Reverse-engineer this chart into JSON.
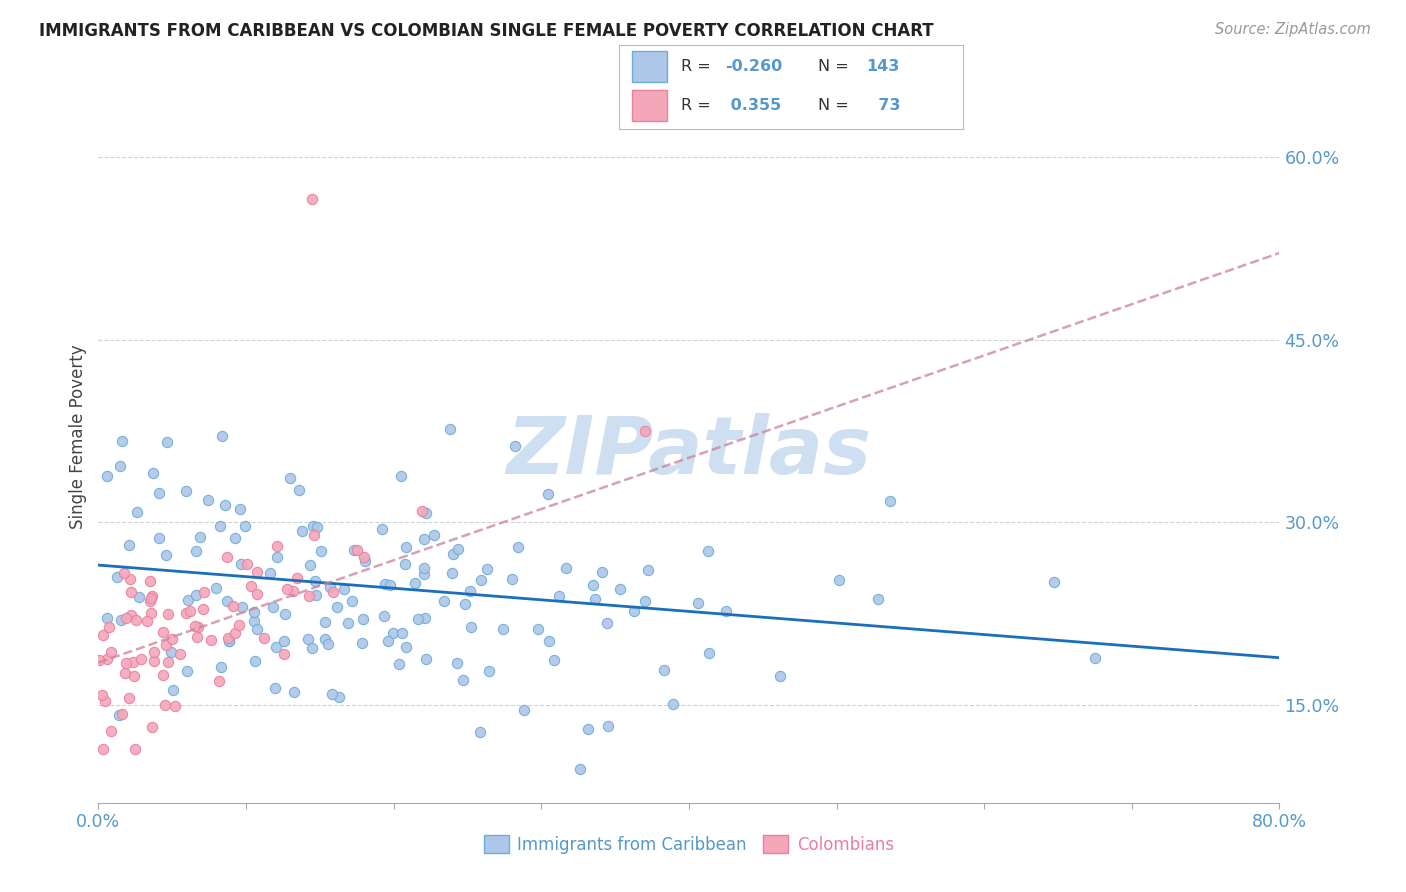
{
  "title": "IMMIGRANTS FROM CARIBBEAN VS COLOMBIAN SINGLE FEMALE POVERTY CORRELATION CHART",
  "source": "Source: ZipAtlas.com",
  "ylabel": "Single Female Poverty",
  "yticks": [
    0.15,
    0.3,
    0.45,
    0.6
  ],
  "ytick_labels": [
    "15.0%",
    "30.0%",
    "45.0%",
    "60.0%"
  ],
  "xtick_vals": [
    0.0,
    0.1,
    0.2,
    0.3,
    0.4,
    0.5,
    0.6,
    0.7,
    0.8
  ],
  "xmin": 0.0,
  "xmax": 0.8,
  "ymin": 0.07,
  "ymax": 0.67,
  "legend_label1": "Immigrants from Caribbean",
  "legend_label2": "Colombians",
  "color_blue_fill": "#aec6e8",
  "color_blue_edge": "#6baed6",
  "color_pink_fill": "#f4a7b9",
  "color_pink_edge": "#e87fa0",
  "trendline_blue": "#1a6fbd",
  "trendline_pink": "#c9829a",
  "tick_label_color": "#5599cc",
  "watermark_color": "#cddff0",
  "grid_color": "#cccccc",
  "title_color": "#222222",
  "source_color": "#999999",
  "ylabel_color": "#444444",
  "R_carib": -0.26,
  "N_carib": 143,
  "R_col": 0.355,
  "N_col": 73,
  "legend_R1": "-0.260",
  "legend_N1": "143",
  "legend_R2": "0.355",
  "legend_N2": "73",
  "seed": 42,
  "carib_intercept": 0.265,
  "carib_slope": -0.095,
  "col_intercept": 0.185,
  "col_slope": 0.42
}
